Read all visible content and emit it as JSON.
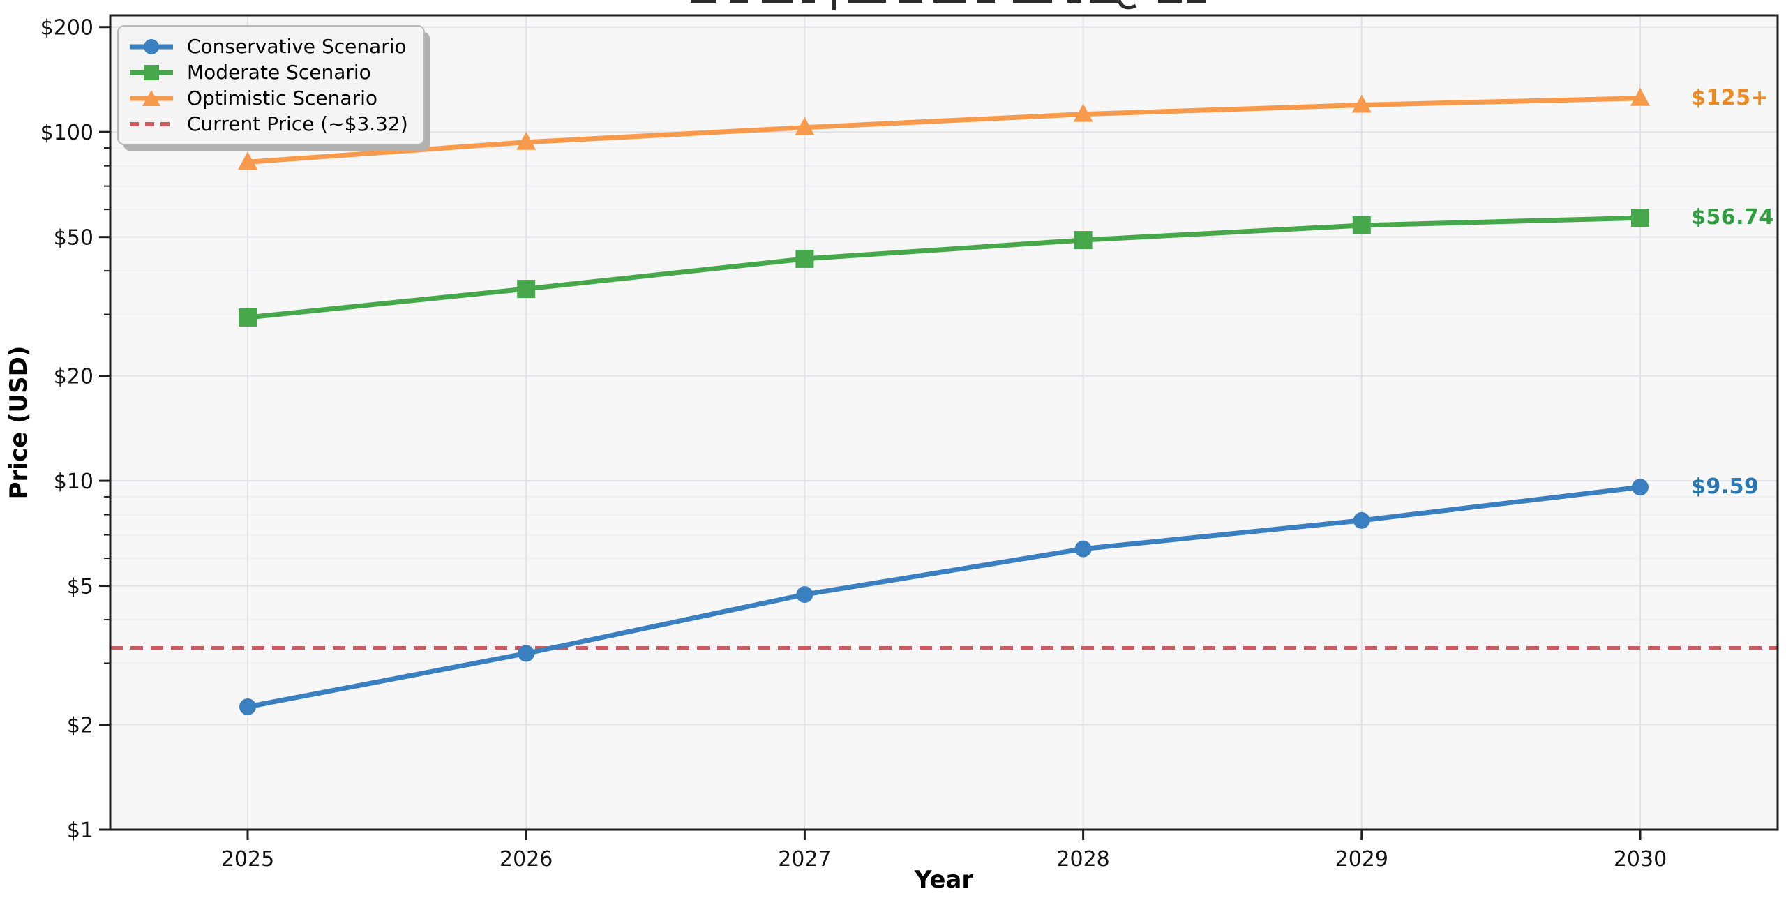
{
  "figure": {
    "background": "#ffffff"
  },
  "chart_data": {
    "type": "line",
    "title": "",
    "xlabel": "Year",
    "ylabel": "Price (USD)",
    "x": [
      2025,
      2026,
      2027,
      2028,
      2029,
      2030
    ],
    "x_tick_labels": [
      "2025",
      "2026",
      "2027",
      "2028",
      "2029",
      "2030"
    ],
    "y_scale": "log",
    "ylim": [
      1,
      216
    ],
    "y_major_ticks": [
      1,
      2,
      5,
      10,
      20,
      50,
      100,
      200
    ],
    "y_major_tick_labels": [
      "$1",
      "$2",
      "$5",
      "$10",
      "$20",
      "$50",
      "$100",
      "$200"
    ],
    "y_minor_ticks": [
      3,
      4,
      6,
      7,
      8,
      9,
      30,
      40,
      60,
      70,
      80,
      90
    ],
    "grid": true,
    "legend_position": "upper-left",
    "series": [
      {
        "name": "Conservative Scenario",
        "marker": "circle",
        "color": "#3a7fbf",
        "values": [
          2.25,
          3.2,
          4.72,
          6.38,
          7.7,
          9.59
        ]
      },
      {
        "name": "Moderate Scenario",
        "marker": "square",
        "color": "#47a84b",
        "values": [
          29.4,
          35.5,
          43.3,
          49,
          54,
          56.74
        ]
      },
      {
        "name": "Optimistic Scenario",
        "marker": "triangle",
        "color": "#f79a4b",
        "values": [
          82,
          93.5,
          103,
          112.5,
          119.5,
          125
        ]
      }
    ],
    "reference_line": {
      "label": "Current Price (~$3.32)",
      "value": 3.32,
      "color": "#cd5c5c",
      "style": "dashed"
    },
    "end_labels": [
      {
        "text": "$125+",
        "value": 125,
        "color": "#ee8a20"
      },
      {
        "text": "$56.74",
        "value": 56.74,
        "color": "#2f9e3e"
      },
      {
        "text": "$9.59",
        "value": 9.59,
        "color": "#2777b4"
      }
    ],
    "legend": {
      "entries": [
        {
          "label": "Conservative Scenario"
        },
        {
          "label": "Moderate Scenario"
        },
        {
          "label": "Optimistic Scenario"
        },
        {
          "label": "Current Price (~$3.32)"
        }
      ]
    },
    "colors": {
      "plot_background": "#f7f7f8",
      "grid_major": "#e2e2e4",
      "grid_minor": "#efeff1",
      "spine": "#1f1f1f",
      "tick_text": "#111111"
    }
  }
}
